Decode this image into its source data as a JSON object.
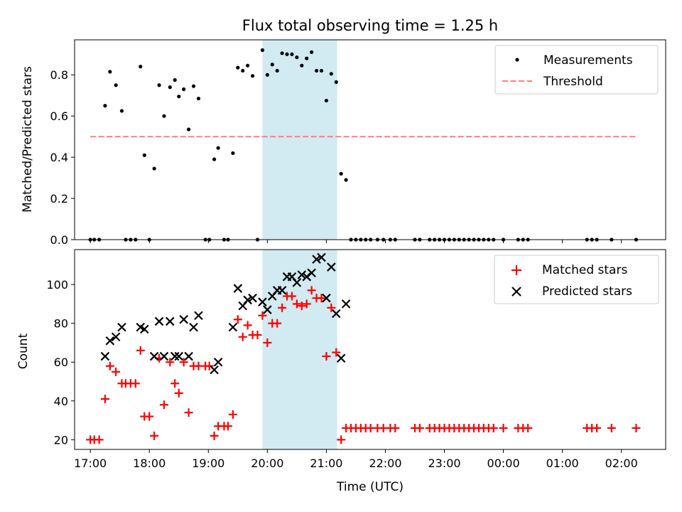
{
  "title": "Flux total observing time = 1.25 h",
  "xlabel": "Time (UTC)",
  "chart_data": [
    {
      "type": "scatter",
      "panel": "top",
      "ylabel": "Matched/Predicted stars",
      "xlim": [
        "16:44",
        "02:45"
      ],
      "ylim": [
        0,
        0.97
      ],
      "yticks": [
        0.0,
        0.2,
        0.4,
        0.6,
        0.8
      ],
      "shaded_interval": [
        "19:55",
        "21:11"
      ],
      "legend_position": "top-right",
      "series": [
        {
          "name": "Measurements",
          "kind": "points",
          "color": "#000000",
          "points": [
            [
              "17:00",
              0.0
            ],
            [
              "17:04",
              0.0
            ],
            [
              "17:09",
              0.0
            ],
            [
              "17:15",
              0.65
            ],
            [
              "17:20",
              0.815
            ],
            [
              "17:26",
              0.75
            ],
            [
              "17:32",
              0.625
            ],
            [
              "17:36",
              0.0
            ],
            [
              "17:41",
              0.0
            ],
            [
              "17:46",
              0.0
            ],
            [
              "17:51",
              0.84
            ],
            [
              "17:55",
              0.41
            ],
            [
              "18:00",
              0.0
            ],
            [
              "18:05",
              0.345
            ],
            [
              "18:10",
              0.75
            ],
            [
              "18:15",
              0.6
            ],
            [
              "18:21",
              0.74
            ],
            [
              "18:26",
              0.775
            ],
            [
              "18:30",
              0.695
            ],
            [
              "18:35",
              0.73
            ],
            [
              "18:40",
              0.535
            ],
            [
              "18:45",
              0.745
            ],
            [
              "18:50",
              0.685
            ],
            [
              "18:57",
              0.0
            ],
            [
              "19:01",
              0.0
            ],
            [
              "19:06",
              0.39
            ],
            [
              "19:10",
              0.445
            ],
            [
              "19:16",
              0.0
            ],
            [
              "19:20",
              0.0
            ],
            [
              "19:25",
              0.42
            ],
            [
              "19:30",
              0.835
            ],
            [
              "19:35",
              0.82
            ],
            [
              "19:40",
              0.845
            ],
            [
              "19:45",
              0.795
            ],
            [
              "19:50",
              0.0
            ],
            [
              "19:55",
              0.92
            ],
            [
              "20:00",
              0.8
            ],
            [
              "20:05",
              0.85
            ],
            [
              "20:10",
              0.82
            ],
            [
              "20:15",
              0.905
            ],
            [
              "20:20",
              0.9
            ],
            [
              "20:25",
              0.9
            ],
            [
              "20:30",
              0.885
            ],
            [
              "20:35",
              0.845
            ],
            [
              "20:40",
              0.88
            ],
            [
              "20:45",
              0.91
            ],
            [
              "20:50",
              0.82
            ],
            [
              "20:55",
              0.82
            ],
            [
              "21:00",
              0.675
            ],
            [
              "21:05",
              0.805
            ],
            [
              "21:10",
              0.765
            ],
            [
              "21:15",
              0.32
            ],
            [
              "21:20",
              0.29
            ],
            [
              "21:25",
              0.0
            ],
            [
              "21:30",
              0.0
            ],
            [
              "21:35",
              0.0
            ],
            [
              "21:40",
              0.0
            ],
            [
              "21:45",
              0.0
            ],
            [
              "21:52",
              0.0
            ],
            [
              "21:58",
              0.0
            ],
            [
              "22:05",
              0.0
            ],
            [
              "22:10",
              0.0
            ],
            [
              "22:30",
              0.0
            ],
            [
              "22:35",
              0.0
            ],
            [
              "22:45",
              0.0
            ],
            [
              "22:50",
              0.0
            ],
            [
              "22:55",
              0.0
            ],
            [
              "23:00",
              0.0
            ],
            [
              "23:05",
              0.0
            ],
            [
              "23:10",
              0.0
            ],
            [
              "23:15",
              0.0
            ],
            [
              "23:20",
              0.0
            ],
            [
              "23:25",
              0.0
            ],
            [
              "23:30",
              0.0
            ],
            [
              "23:35",
              0.0
            ],
            [
              "23:40",
              0.0
            ],
            [
              "23:45",
              0.0
            ],
            [
              "23:50",
              0.0
            ],
            [
              "24:00",
              0.0
            ],
            [
              "24:15",
              0.0
            ],
            [
              "24:20",
              0.0
            ],
            [
              "24:25",
              0.0
            ],
            [
              "25:25",
              0.0
            ],
            [
              "25:30",
              0.0
            ],
            [
              "25:35",
              0.0
            ],
            [
              "25:50",
              0.0
            ],
            [
              "26:15",
              0.0
            ]
          ]
        },
        {
          "name": "Threshold",
          "kind": "dashed-line",
          "color": "#ff7f7f",
          "points": [
            [
              "17:00",
              0.5
            ],
            [
              "26:15",
              0.5
            ]
          ]
        }
      ]
    },
    {
      "type": "scatter",
      "panel": "bottom",
      "ylabel": "Count",
      "xlabel": "Time (UTC)",
      "xlim": [
        "16:44",
        "02:45"
      ],
      "ylim": [
        15,
        118
      ],
      "yticks": [
        20,
        40,
        60,
        80,
        100
      ],
      "xticks": [
        "17:00",
        "18:00",
        "19:00",
        "20:00",
        "21:00",
        "22:00",
        "23:00",
        "00:00",
        "01:00",
        "02:00"
      ],
      "shaded_interval": [
        "19:55",
        "21:11"
      ],
      "legend_position": "top-right",
      "series": [
        {
          "name": "Matched stars",
          "marker": "plus",
          "color": "#ff0000",
          "points": [
            [
              "17:00",
              20
            ],
            [
              "17:04",
              20
            ],
            [
              "17:09",
              20
            ],
            [
              "17:15",
              41
            ],
            [
              "17:20",
              58
            ],
            [
              "17:26",
              55
            ],
            [
              "17:32",
              49
            ],
            [
              "17:36",
              49
            ],
            [
              "17:41",
              49
            ],
            [
              "17:46",
              49
            ],
            [
              "17:51",
              66
            ],
            [
              "17:55",
              32
            ],
            [
              "18:00",
              32
            ],
            [
              "18:05",
              22
            ],
            [
              "18:10",
              62
            ],
            [
              "18:15",
              38
            ],
            [
              "18:21",
              60
            ],
            [
              "18:26",
              49
            ],
            [
              "18:30",
              44
            ],
            [
              "18:35",
              60
            ],
            [
              "18:40",
              34
            ],
            [
              "18:45",
              58
            ],
            [
              "18:50",
              58
            ],
            [
              "18:57",
              58
            ],
            [
              "19:01",
              58
            ],
            [
              "19:06",
              22
            ],
            [
              "19:10",
              27
            ],
            [
              "19:16",
              27
            ],
            [
              "19:20",
              27
            ],
            [
              "19:25",
              33
            ],
            [
              "19:30",
              82
            ],
            [
              "19:35",
              73
            ],
            [
              "19:40",
              79
            ],
            [
              "19:45",
              74
            ],
            [
              "19:50",
              74
            ],
            [
              "19:55",
              84
            ],
            [
              "20:00",
              70
            ],
            [
              "20:05",
              80
            ],
            [
              "20:10",
              80
            ],
            [
              "20:15",
              88
            ],
            [
              "20:20",
              94
            ],
            [
              "20:25",
              94
            ],
            [
              "20:30",
              90
            ],
            [
              "20:35",
              89
            ],
            [
              "20:40",
              90
            ],
            [
              "20:45",
              97
            ],
            [
              "20:50",
              93
            ],
            [
              "20:55",
              93
            ],
            [
              "21:00",
              63
            ],
            [
              "21:05",
              88
            ],
            [
              "21:10",
              65
            ],
            [
              "21:15",
              20
            ],
            [
              "21:20",
              26
            ],
            [
              "21:25",
              26
            ],
            [
              "21:30",
              26
            ],
            [
              "21:35",
              26
            ],
            [
              "21:40",
              26
            ],
            [
              "21:45",
              26
            ],
            [
              "21:52",
              26
            ],
            [
              "21:58",
              26
            ],
            [
              "22:05",
              26
            ],
            [
              "22:10",
              26
            ],
            [
              "22:30",
              26
            ],
            [
              "22:35",
              26
            ],
            [
              "22:45",
              26
            ],
            [
              "22:50",
              26
            ],
            [
              "22:55",
              26
            ],
            [
              "23:00",
              26
            ],
            [
              "23:05",
              26
            ],
            [
              "23:10",
              26
            ],
            [
              "23:15",
              26
            ],
            [
              "23:20",
              26
            ],
            [
              "23:25",
              26
            ],
            [
              "23:30",
              26
            ],
            [
              "23:35",
              26
            ],
            [
              "23:40",
              26
            ],
            [
              "23:45",
              26
            ],
            [
              "23:50",
              26
            ],
            [
              "24:00",
              26
            ],
            [
              "24:15",
              26
            ],
            [
              "24:20",
              26
            ],
            [
              "24:25",
              26
            ],
            [
              "25:25",
              26
            ],
            [
              "25:30",
              26
            ],
            [
              "25:35",
              26
            ],
            [
              "25:50",
              26
            ],
            [
              "26:15",
              26
            ]
          ]
        },
        {
          "name": "Predicted stars",
          "marker": "x",
          "color": "#000000",
          "points": [
            [
              "17:15",
              63
            ],
            [
              "17:20",
              71
            ],
            [
              "17:26",
              73
            ],
            [
              "17:32",
              78
            ],
            [
              "17:51",
              78
            ],
            [
              "17:55",
              77
            ],
            [
              "18:05",
              63
            ],
            [
              "18:10",
              81
            ],
            [
              "18:15",
              63
            ],
            [
              "18:21",
              81
            ],
            [
              "18:26",
              63
            ],
            [
              "18:30",
              63
            ],
            [
              "18:35",
              82
            ],
            [
              "18:40",
              63
            ],
            [
              "18:45",
              78
            ],
            [
              "18:50",
              84
            ],
            [
              "19:06",
              56
            ],
            [
              "19:10",
              60
            ],
            [
              "19:25",
              78
            ],
            [
              "19:30",
              98
            ],
            [
              "19:35",
              89
            ],
            [
              "19:40",
              92
            ],
            [
              "19:45",
              93
            ],
            [
              "19:55",
              91
            ],
            [
              "20:00",
              87
            ],
            [
              "20:05",
              94
            ],
            [
              "20:10",
              97
            ],
            [
              "20:15",
              97
            ],
            [
              "20:20",
              104
            ],
            [
              "20:25",
              104
            ],
            [
              "20:30",
              101
            ],
            [
              "20:35",
              105
            ],
            [
              "20:40",
              104
            ],
            [
              "20:45",
              106
            ],
            [
              "20:50",
              113
            ],
            [
              "20:55",
              114
            ],
            [
              "21:00",
              93
            ],
            [
              "21:05",
              109
            ],
            [
              "21:10",
              85
            ],
            [
              "21:15",
              62
            ],
            [
              "21:20",
              90
            ]
          ]
        }
      ]
    }
  ]
}
